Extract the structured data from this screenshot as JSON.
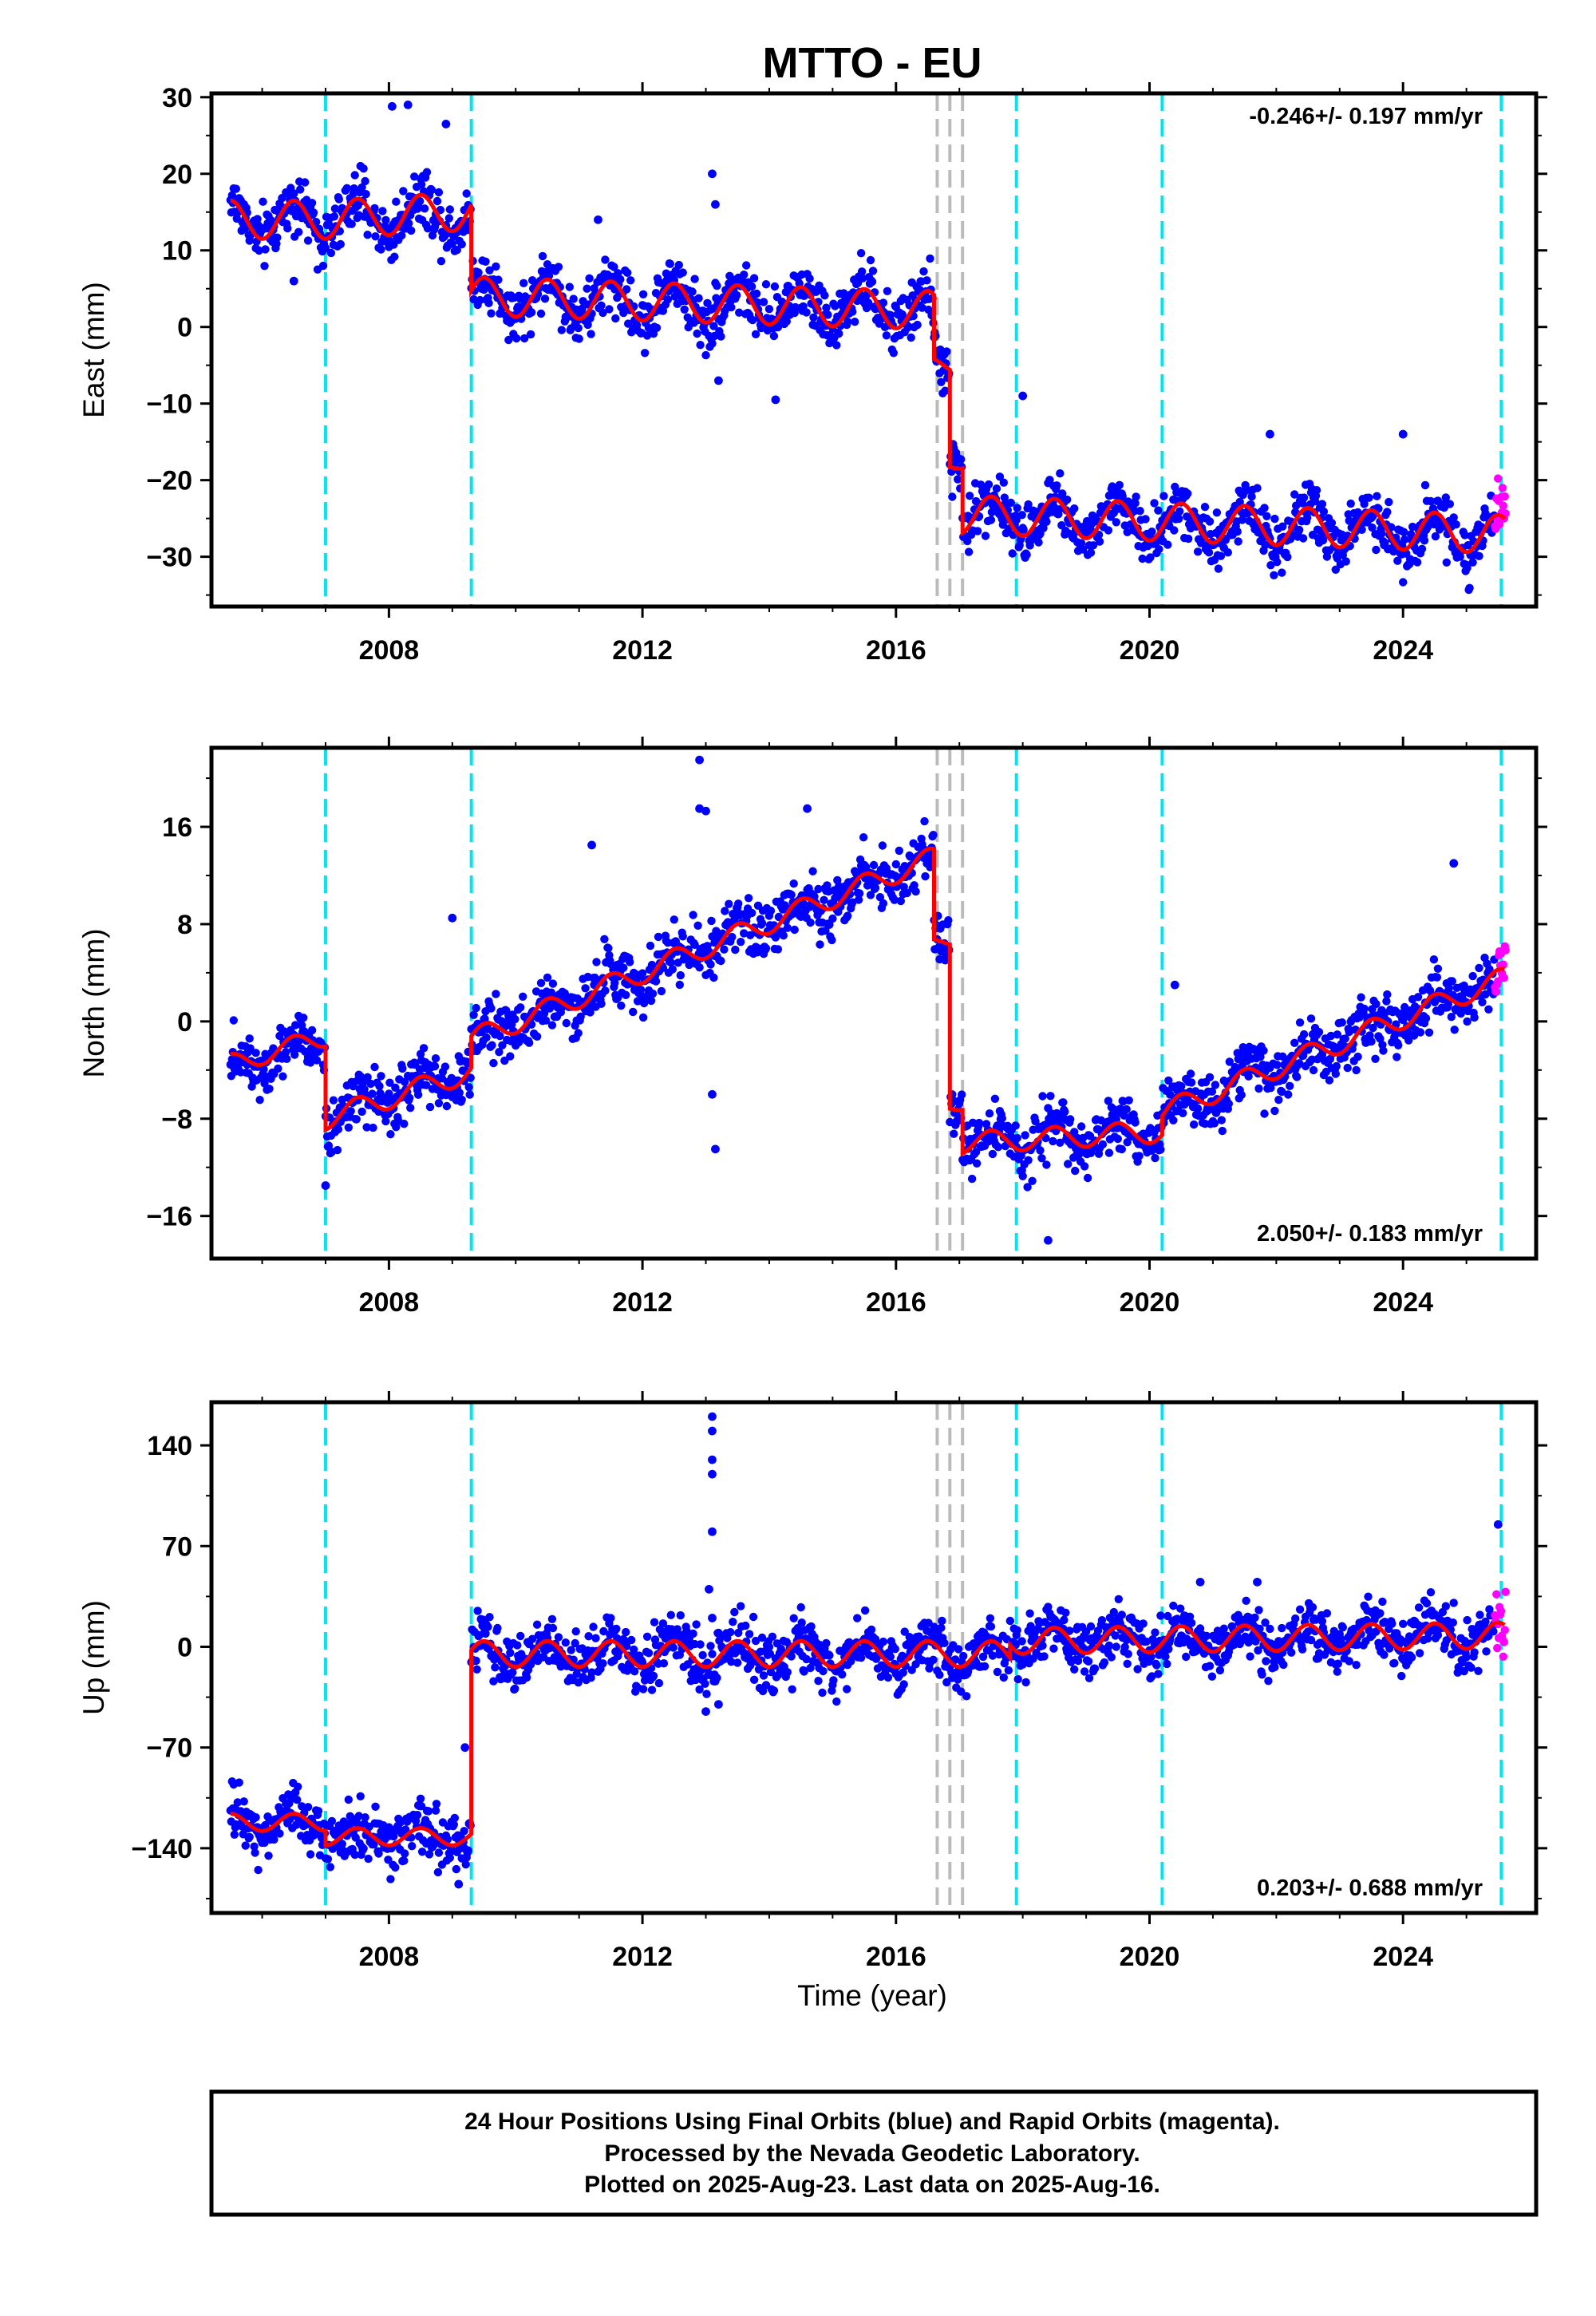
{
  "chart_data": {
    "type": "scatter",
    "title": "MTTO - EU",
    "xlabel": "Time (year)",
    "xlim": [
      2005.2,
      2026.1
    ],
    "x_ticks": [
      2008,
      2012,
      2016,
      2020,
      2024
    ],
    "x_tick_labels": [
      "2008",
      "2012",
      "2016",
      "2020",
      "2024"
    ],
    "grid": false,
    "series_legend": {
      "final_orbits_color": "#0000ff",
      "rapid_orbits_color": "#ff00ff",
      "model_color": "#ff0000"
    },
    "event_lines": {
      "cyan": [
        2007.0,
        2009.3,
        2017.9,
        2020.2,
        2025.55
      ],
      "gray": [
        2016.65,
        2016.85,
        2017.05
      ]
    },
    "panels": [
      {
        "id": "east",
        "ylabel": "East (mm)",
        "ylim": [
          -36.5,
          30.5
        ],
        "y_ticks": [
          30,
          20,
          10,
          0,
          -10,
          -20,
          -30
        ],
        "y_tick_labels": [
          "30",
          "20",
          "10",
          "0",
          "−10",
          "−20",
          "−30"
        ],
        "rate_text": "-0.246+/- 0.197 mm/yr",
        "rate_position": "top-right",
        "model_segments": [
          {
            "t": [
              2005.5,
              2007.0
            ],
            "offset": 14.0,
            "slope": 0.0,
            "amp": 2.5
          },
          {
            "t": [
              2007.0,
              2009.3
            ],
            "offset": 14.0,
            "slope": 0.5,
            "amp": 2.5
          },
          {
            "t": [
              2009.3,
              2016.6
            ],
            "offset": 4.0,
            "slope": -0.25,
            "amp": 2.5
          },
          {
            "t": [
              2016.6,
              2016.85
            ],
            "offset": -5.0,
            "slope": 0.0,
            "amp": 1.0
          },
          {
            "t": [
              2016.85,
              2017.05
            ],
            "offset": -18.0,
            "slope": 0.0,
            "amp": 0.5
          },
          {
            "t": [
              2017.05,
              2025.6
            ],
            "offset": -24.5,
            "slope": -0.3,
            "amp": 2.5
          }
        ],
        "sample_points": [
          {
            "t": 2005.6,
            "v": 15.2
          },
          {
            "t": 2006.0,
            "v": 11.5
          },
          {
            "t": 2007.5,
            "v": 15.0
          },
          {
            "t": 2008.5,
            "v": 16.5
          },
          {
            "t": 2009.5,
            "v": 5.0
          },
          {
            "t": 2011.0,
            "v": 2.5
          },
          {
            "t": 2013.2,
            "v": 3.0
          },
          {
            "t": 2015.0,
            "v": 2.0
          },
          {
            "t": 2016.3,
            "v": 4.0
          },
          {
            "t": 2017.5,
            "v": -24.0
          },
          {
            "t": 2019.5,
            "v": -26.0
          },
          {
            "t": 2022.0,
            "v": -27.0
          },
          {
            "t": 2024.5,
            "v": -27.5
          },
          {
            "t": 2025.5,
            "v": -26.0
          }
        ],
        "outliers": [
          {
            "t": 2008.05,
            "v": 28.8
          },
          {
            "t": 2008.3,
            "v": 29.0
          },
          {
            "t": 2008.9,
            "v": 26.5
          },
          {
            "t": 2013.1,
            "v": 20.0
          },
          {
            "t": 2013.15,
            "v": 16.0
          },
          {
            "t": 2013.2,
            "v": -7.0
          },
          {
            "t": 2014.1,
            "v": -9.5
          },
          {
            "t": 2018.0,
            "v": -9.0
          },
          {
            "t": 2021.9,
            "v": -14.0
          },
          {
            "t": 2024.0,
            "v": -14.0
          },
          {
            "t": 2011.3,
            "v": 14.0
          },
          {
            "t": 2006.5,
            "v": 6.0
          }
        ]
      },
      {
        "id": "north",
        "ylabel": "North (mm)",
        "ylim": [
          -19.5,
          22.5
        ],
        "y_ticks": [
          16,
          8,
          0,
          -8,
          -16
        ],
        "y_tick_labels": [
          "16",
          "8",
          "0",
          "−8",
          "−16"
        ],
        "rate_text": "2.050+/- 0.183 mm/yr",
        "rate_position": "bottom-right",
        "model_segments": [
          {
            "t": [
              2005.5,
              2007.0
            ],
            "offset": -3.5,
            "slope": 1.5,
            "amp": 0.8
          },
          {
            "t": [
              2007.0,
              2009.3
            ],
            "offset": -8.0,
            "slope": 1.7,
            "amp": 0.9
          },
          {
            "t": [
              2009.3,
              2016.6
            ],
            "offset": -1.5,
            "slope": 2.05,
            "amp": 0.9
          },
          {
            "t": [
              2016.6,
              2016.85
            ],
            "offset": 6.5,
            "slope": 0.0,
            "amp": 0.3
          },
          {
            "t": [
              2016.85,
              2017.05
            ],
            "offset": -7.0,
            "slope": 0.0,
            "amp": 0.3
          },
          {
            "t": [
              2017.05,
              2020.2
            ],
            "offset": -10.0,
            "slope": 0.3,
            "amp": 0.9
          },
          {
            "t": [
              2020.2,
              2025.6
            ],
            "offset": -7.5,
            "slope": 2.05,
            "amp": 0.9
          }
        ],
        "sample_points": [
          {
            "t": 2005.6,
            "v": -4.0
          },
          {
            "t": 2007.5,
            "v": -7.5
          },
          {
            "t": 2008.5,
            "v": -5.5
          },
          {
            "t": 2009.6,
            "v": -1.0
          },
          {
            "t": 2012.0,
            "v": 4.5
          },
          {
            "t": 2014.5,
            "v": 9.5
          },
          {
            "t": 2016.2,
            "v": 13.5
          },
          {
            "t": 2017.5,
            "v": -10.0
          },
          {
            "t": 2019.0,
            "v": -10.5
          },
          {
            "t": 2021.0,
            "v": -4.5
          },
          {
            "t": 2023.0,
            "v": 0.0
          },
          {
            "t": 2025.4,
            "v": 4.5
          }
        ],
        "outliers": [
          {
            "t": 2012.9,
            "v": 21.5
          },
          {
            "t": 2012.9,
            "v": 17.5
          },
          {
            "t": 2013.0,
            "v": 17.3
          },
          {
            "t": 2013.1,
            "v": -6.0
          },
          {
            "t": 2013.15,
            "v": -10.5
          },
          {
            "t": 2007.0,
            "v": -13.5
          },
          {
            "t": 2009.0,
            "v": 8.5
          },
          {
            "t": 2014.6,
            "v": 17.5
          },
          {
            "t": 2018.4,
            "v": -18.0
          },
          {
            "t": 2020.4,
            "v": 3.0
          },
          {
            "t": 2024.8,
            "v": 13.0
          },
          {
            "t": 2011.2,
            "v": 14.5
          }
        ]
      },
      {
        "id": "up",
        "ylabel": "Up (mm)",
        "ylim": [
          -185,
          170
        ],
        "y_ticks": [
          140,
          70,
          0,
          -70,
          -140
        ],
        "y_tick_labels": [
          "140",
          "70",
          "0",
          "−70",
          "−140"
        ],
        "rate_text": "0.203+/- 0.688 mm/yr",
        "rate_position": "bottom-right",
        "model_segments": [
          {
            "t": [
              2005.5,
              2007.0
            ],
            "offset": -122.0,
            "slope": 0.0,
            "amp": 6.0
          },
          {
            "t": [
              2007.0,
              2009.3
            ],
            "offset": -132.0,
            "slope": 0.0,
            "amp": 6.0
          },
          {
            "t": [
              2009.3,
              2017.8
            ],
            "offset": -5.0,
            "slope": 0.0,
            "amp": 9.0
          },
          {
            "t": [
              2017.8,
              2025.6
            ],
            "offset": 4.0,
            "slope": 0.5,
            "amp": 9.0
          }
        ],
        "sample_points": [
          {
            "t": 2005.6,
            "v": -120.0
          },
          {
            "t": 2007.5,
            "v": -130.0
          },
          {
            "t": 2008.8,
            "v": -135.0
          },
          {
            "t": 2010.0,
            "v": -5.0
          },
          {
            "t": 2012.5,
            "v": -5.0
          },
          {
            "t": 2015.0,
            "v": -8.0
          },
          {
            "t": 2018.5,
            "v": 5.0
          },
          {
            "t": 2021.5,
            "v": 10.0
          },
          {
            "t": 2024.5,
            "v": 8.0
          }
        ],
        "outliers": [
          {
            "t": 2013.1,
            "v": 160.0
          },
          {
            "t": 2013.1,
            "v": 150.0
          },
          {
            "t": 2013.1,
            "v": 130.0
          },
          {
            "t": 2013.1,
            "v": 120.0
          },
          {
            "t": 2013.1,
            "v": 80.0
          },
          {
            "t": 2013.05,
            "v": 40.0
          },
          {
            "t": 2013.1,
            "v": 20.0
          },
          {
            "t": 2013.0,
            "v": -45.0
          },
          {
            "t": 2013.2,
            "v": -40.0
          },
          {
            "t": 2009.2,
            "v": -70.0
          },
          {
            "t": 2009.1,
            "v": -165.0
          },
          {
            "t": 2025.5,
            "v": 85.0
          },
          {
            "t": 2020.8,
            "v": 45.0
          },
          {
            "t": 2021.7,
            "v": 45.0
          }
        ]
      }
    ],
    "footer_lines": [
      "24 Hour Positions Using Final Orbits (blue) and Rapid Orbits (magenta).",
      "Processed by the Nevada Geodetic Laboratory.",
      "Plotted on 2025-Aug-23. Last data on 2025-Aug-16."
    ]
  }
}
